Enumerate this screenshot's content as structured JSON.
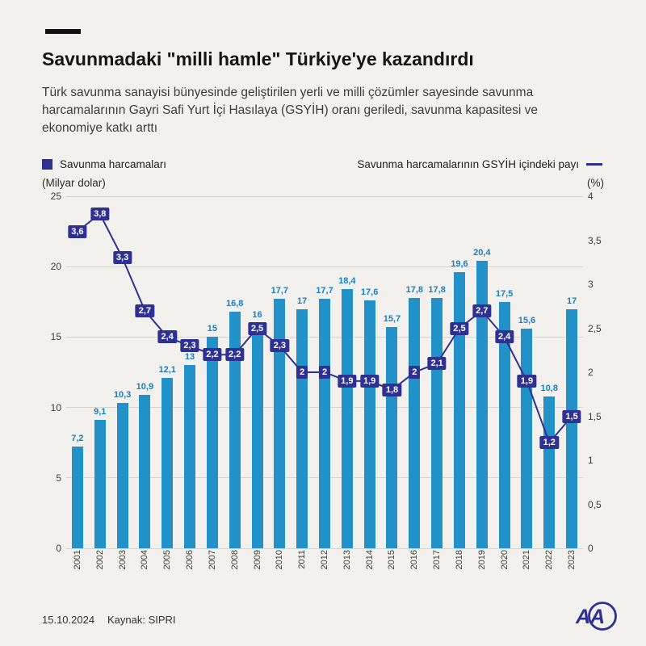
{
  "page": {
    "title": "Savunmadaki \"milli hamle\" Türkiye'ye kazandırdı",
    "subtitle": "Türk savunma sanayisi bünyesinde geliştirilen yerli ve milli çözümler sayesinde savunma harcamalarının Gayri Safi Yurt İçi Hasılaya (GSYİH) oranı geriledi, savunma kapasitesi ve ekonomiye katkı arttı",
    "footer": {
      "date": "15.10.2024",
      "source": "Kaynak: SIPRI"
    },
    "logo_text": "AA"
  },
  "legend": {
    "bars_label": "Savunma harcamaları",
    "line_label": "Savunma harcamalarının GSYİH içindeki payı"
  },
  "axes": {
    "left_unit": "(Milyar dolar)",
    "right_unit": "(%)",
    "left_ticks": [
      0,
      5,
      10,
      15,
      20,
      25
    ],
    "right_ticks": [
      0,
      0.5,
      1,
      1.5,
      2,
      2.5,
      3,
      3.5,
      4
    ]
  },
  "colors": {
    "bar": "#2191c8",
    "bar_label": "#1a7ec2",
    "line": "#2e3192",
    "background": "#f3f1ee"
  },
  "chart_data": {
    "type": "bar+line",
    "title": "Savunmadaki \"milli hamle\" Türkiye'ye kazandırdı",
    "categories": [
      "2001",
      "2002",
      "2003",
      "2004",
      "2005",
      "2006",
      "2007",
      "2008",
      "2009",
      "2010",
      "2011",
      "2012",
      "2013",
      "2014",
      "2015",
      "2016",
      "2017",
      "2018",
      "2019",
      "2020",
      "2021",
      "2022",
      "2023"
    ],
    "series": [
      {
        "name": "Savunma harcamaları",
        "type": "bar",
        "axis": "left",
        "unit": "Milyar dolar",
        "values": [
          7.2,
          9.1,
          10.3,
          10.9,
          12.1,
          13,
          15,
          16.8,
          16,
          17.7,
          17,
          17.7,
          18.4,
          17.6,
          15.7,
          17.8,
          17.8,
          19.6,
          20.4,
          17.5,
          15.6,
          10.8,
          17
        ]
      },
      {
        "name": "Savunma harcamalarının GSYİH içindeki payı",
        "type": "line",
        "axis": "right",
        "unit": "%",
        "values": [
          3.6,
          3.8,
          3.3,
          2.7,
          2.4,
          2.3,
          2.2,
          2.2,
          2.5,
          2.3,
          2,
          2,
          1.9,
          1.9,
          1.8,
          2,
          2.1,
          2.5,
          2.7,
          2.4,
          1.9,
          1.2,
          1.5
        ]
      }
    ],
    "ylabel_left": "(Milyar dolar)",
    "ylabel_right": "(%)",
    "ylim_left": [
      0,
      25
    ],
    "ylim_right": [
      0,
      4
    ],
    "grid": true,
    "legend_position": "top"
  }
}
